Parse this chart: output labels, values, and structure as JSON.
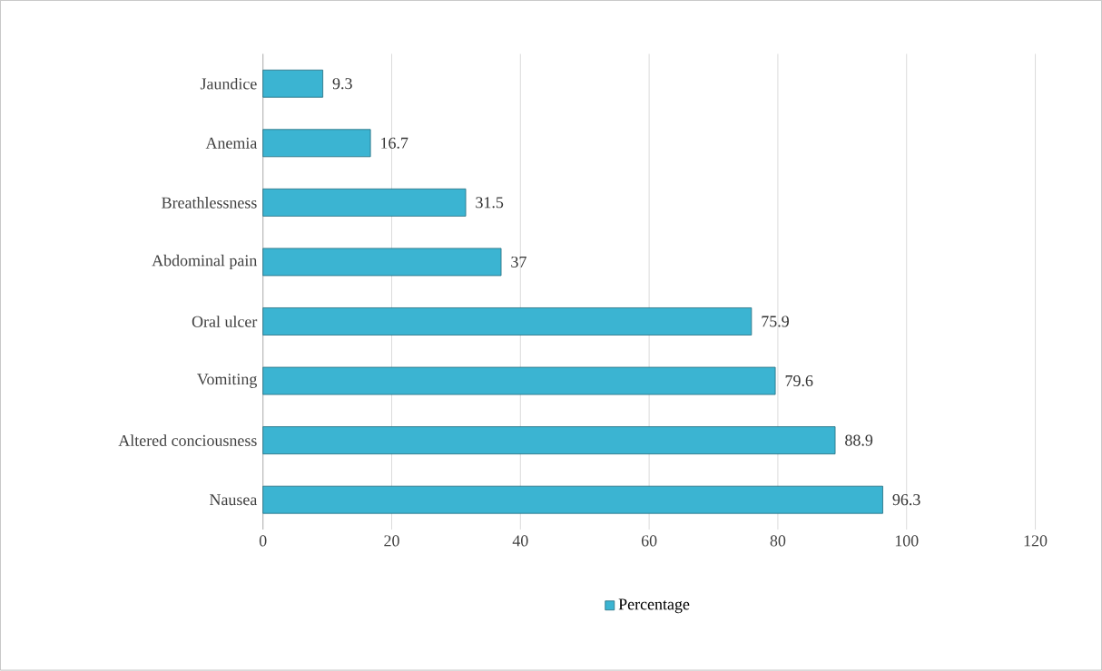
{
  "chart_data": {
    "type": "bar",
    "orientation": "horizontal",
    "categories": [
      "Jaundice",
      "Anemia",
      "Breathlessness",
      "Abdominal pain",
      "Oral ulcer",
      "Vomiting",
      "Altered conciousness",
      "Nausea"
    ],
    "series": [
      {
        "name": "Percentage",
        "color": "#3bb4d2",
        "values": [
          9.3,
          16.7,
          31.5,
          37,
          75.9,
          79.6,
          88.9,
          96.3
        ]
      }
    ],
    "xlim": [
      0,
      120
    ],
    "xticks": [
      0,
      20,
      40,
      60,
      80,
      100,
      120
    ],
    "grid": "x",
    "legend": "bottom",
    "data_labels": true
  }
}
